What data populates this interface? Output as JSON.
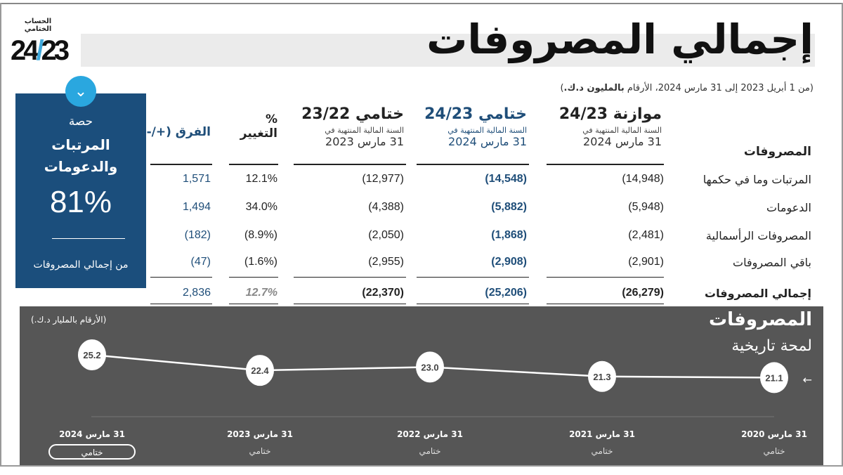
{
  "header": {
    "brand_small": "الحساب الختامي",
    "logo": {
      "a": "24",
      "slash": "/",
      "b": "23"
    },
    "title": "إجمالي المصروفات",
    "subtitle_prefix": "(من 1 أبريل 2023 إلى 31 مارس 2024، الأرقام ",
    "subtitle_bold": "بالمليون د.ك.",
    "subtitle_suffix": ")"
  },
  "share_box": {
    "line1": "حصة",
    "line2": "المرتبات",
    "line3": "والدعومات",
    "value": "81%",
    "caption": "من إجمالي المصروفات",
    "toggle_icon": "chevron-down-icon"
  },
  "table": {
    "row_header": "المصروفات",
    "columns": [
      {
        "title": "موازنة 24/23",
        "sub": "السنة المالية المنتهية في",
        "date": "31 مارس 2024"
      },
      {
        "title": "ختامي 24/23",
        "sub": "السنة المالية المنتهية في",
        "date": "31 مارس 2024"
      },
      {
        "title": "ختامي 23/22",
        "sub": "السنة المالية المنتهية في",
        "date": "31 مارس 2023"
      },
      {
        "title": "%",
        "sub2": "التغيير"
      },
      {
        "title": "الفرق (+/-)"
      }
    ],
    "rows": [
      {
        "label": "المرتبات وما في حكمها",
        "budget": "(14,948)",
        "actual": "(14,548)",
        "prev": "(12,977)",
        "pct": "12.1%",
        "diff": "1,571"
      },
      {
        "label": "الدعومات",
        "budget": "(5,948)",
        "actual": "(5,882)",
        "prev": "(4,388)",
        "pct": "34.0%",
        "diff": "1,494"
      },
      {
        "label": "المصروفات الرأسمالية",
        "budget": "(2,481)",
        "actual": "(1,868)",
        "prev": "(2,050)",
        "pct": "(8.9%)",
        "diff": "(182)"
      },
      {
        "label": "باقي المصروفات",
        "budget": "(2,901)",
        "actual": "(2,908)",
        "prev": "(2,955)",
        "pct": "(1.6%)",
        "diff": "(47)"
      }
    ],
    "total": {
      "label": "إجمالي المصروفات",
      "budget": "(26,279)",
      "actual": "(25,206)",
      "prev": "(22,370)",
      "pct": "12.7%",
      "diff": "2,836"
    }
  },
  "chart_data": {
    "type": "line",
    "title": "المصروفات",
    "subtitle": "لمحة تاريخية",
    "unit_note": "(الأرقام بالمليار د.ك.)",
    "categories": [
      "31 مارس 2024",
      "31 مارس 2023",
      "31 مارس 2022",
      "31 مارس 2021",
      "31 مارس 2020"
    ],
    "category_sub": "ختامي",
    "selected": "31 مارس 2024",
    "values": [
      25.2,
      22.4,
      23.0,
      21.3,
      21.1
    ],
    "labels": [
      "25.2",
      "22.4",
      "23.0",
      "21.3",
      "21.1"
    ],
    "ylim": [
      18,
      27
    ],
    "arrow_icon": "arrow-left-icon"
  }
}
